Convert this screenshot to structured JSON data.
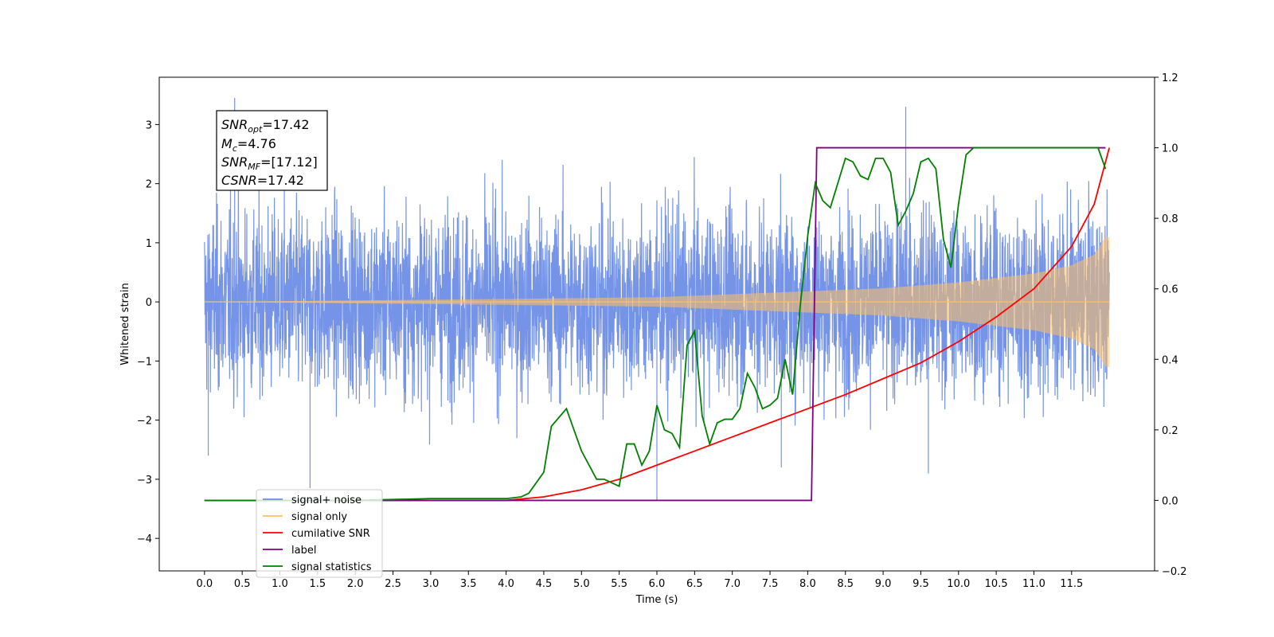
{
  "chart_data": {
    "type": "line",
    "xlabel": "Time (s)",
    "ylabel": "Whitened strain",
    "xlim": [
      -0.6,
      12.6
    ],
    "ylim": [
      -4.55,
      3.8
    ],
    "ylim_right": [
      -0.2,
      1.2
    ],
    "x_ticks": [
      0.0,
      0.5,
      1.0,
      1.5,
      2.0,
      2.5,
      3.0,
      3.5,
      4.0,
      4.5,
      5.0,
      5.5,
      6.0,
      6.5,
      7.0,
      7.5,
      8.0,
      8.5,
      9.0,
      9.5,
      10.0,
      10.5,
      11.0,
      11.5
    ],
    "x_tick_labels": [
      "0.0",
      "0.5",
      "1.0",
      "1.5",
      "2.0",
      "2.5",
      "3.0",
      "3.5",
      "4.0",
      "4.5",
      "5.0",
      "5.5",
      "6.0",
      "6.5",
      "7.0",
      "7.5",
      "8.0",
      "8.5",
      "9.0",
      "9.5",
      "10.0",
      "10.5",
      "11.0",
      "11.5"
    ],
    "y_ticks": [
      3,
      2,
      1,
      0,
      -1,
      -2,
      -3,
      -4
    ],
    "y_tick_labels": [
      "3",
      "2",
      "1",
      "0",
      "−1",
      "−2",
      "−3",
      "−4"
    ],
    "y_ticks_right": [
      1.2,
      1.0,
      0.8,
      0.6,
      0.4,
      0.2,
      0.0,
      -0.2
    ],
    "y_tick_labels_right": [
      "1.2",
      "1.0",
      "0.8",
      "0.6",
      "0.4",
      "0.2",
      "0.0",
      "−0.2"
    ],
    "grid": false,
    "legend_position": "lower-left",
    "annotation": {
      "snr_opt_base": "SNR",
      "snr_opt_sub": "opt",
      "snr_opt_value": "=17.42",
      "mc_base": "M",
      "mc_sub": "c",
      "mc_value": "=4.76",
      "snr_mf_base": "SNR",
      "snr_mf_sub": "MF",
      "snr_mf_value": "=[17.12]",
      "csnr_base": "CSNR",
      "csnr_value": "=17.42"
    },
    "noise": {
      "name": "signal+ noise",
      "color": "#6f8ee6",
      "x_range": [
        0.0,
        12.0
      ],
      "typical_range": [
        -1.6,
        1.6
      ],
      "max": 3.45,
      "min": -3.35,
      "spikes": [
        [
          0.4,
          3.45
        ],
        [
          9.3,
          3.3
        ],
        [
          6.0,
          -3.35
        ],
        [
          1.4,
          -3.15
        ],
        [
          0.05,
          -2.6
        ],
        [
          7.65,
          -2.8
        ],
        [
          9.6,
          -2.9
        ]
      ]
    },
    "signal": {
      "name": "signal only",
      "color": "#ffbf60",
      "amplitude": [
        [
          0.0,
          0.0
        ],
        [
          4.0,
          0.05
        ],
        [
          6.0,
          0.08
        ],
        [
          8.0,
          0.18
        ],
        [
          9.0,
          0.23
        ],
        [
          10.0,
          0.33
        ],
        [
          11.0,
          0.48
        ],
        [
          11.5,
          0.62
        ],
        [
          11.8,
          0.8
        ],
        [
          11.95,
          1.1
        ],
        [
          12.0,
          1.1
        ]
      ]
    },
    "series": [
      {
        "name": "cumilative SNR",
        "axis": "right",
        "color": "#ff0000",
        "x": [
          0.0,
          4.0,
          4.5,
          5.0,
          5.5,
          6.0,
          6.5,
          7.0,
          7.5,
          8.0,
          8.5,
          9.0,
          9.5,
          10.0,
          10.5,
          11.0,
          11.5,
          11.8,
          11.95,
          12.0
        ],
        "y": [
          0.0,
          0.0,
          0.01,
          0.03,
          0.06,
          0.1,
          0.14,
          0.18,
          0.22,
          0.26,
          0.3,
          0.345,
          0.39,
          0.45,
          0.52,
          0.6,
          0.72,
          0.84,
          0.96,
          1.0
        ]
      },
      {
        "name": "label",
        "axis": "right",
        "color": "#800080",
        "x": [
          0.0,
          8.05,
          8.12,
          11.95
        ],
        "y": [
          0.0,
          0.0,
          1.0,
          1.0
        ]
      },
      {
        "name": "signal statistics",
        "axis": "right",
        "color": "#008000",
        "x": [
          0.0,
          1.0,
          2.0,
          3.0,
          3.5,
          4.0,
          4.2,
          4.3,
          4.5,
          4.6,
          4.8,
          5.0,
          5.2,
          5.3,
          5.5,
          5.6,
          5.7,
          5.8,
          5.9,
          6.0,
          6.1,
          6.2,
          6.3,
          6.4,
          6.5,
          6.6,
          6.7,
          6.8,
          6.9,
          7.0,
          7.1,
          7.2,
          7.3,
          7.4,
          7.5,
          7.6,
          7.7,
          7.8,
          7.9,
          8.0,
          8.1,
          8.2,
          8.3,
          8.4,
          8.5,
          8.6,
          8.7,
          8.8,
          8.9,
          9.0,
          9.1,
          9.2,
          9.3,
          9.4,
          9.5,
          9.6,
          9.7,
          9.8,
          9.9,
          10.0,
          10.1,
          10.2,
          10.5,
          11.0,
          11.5,
          11.85,
          11.95
        ],
        "y": [
          0.0,
          0.0,
          0.0,
          0.005,
          0.005,
          0.005,
          0.01,
          0.02,
          0.08,
          0.21,
          0.26,
          0.14,
          0.06,
          0.06,
          0.04,
          0.16,
          0.16,
          0.1,
          0.14,
          0.27,
          0.2,
          0.19,
          0.15,
          0.44,
          0.48,
          0.24,
          0.16,
          0.22,
          0.23,
          0.23,
          0.26,
          0.36,
          0.32,
          0.26,
          0.27,
          0.29,
          0.4,
          0.3,
          0.55,
          0.75,
          0.9,
          0.85,
          0.83,
          0.9,
          0.97,
          0.96,
          0.92,
          0.91,
          0.97,
          0.97,
          0.93,
          0.78,
          0.82,
          0.87,
          0.96,
          0.97,
          0.94,
          0.74,
          0.66,
          0.84,
          0.98,
          1.0,
          1.0,
          1.0,
          1.0,
          1.0,
          0.94
        ]
      }
    ],
    "legend": [
      {
        "name": "signal+ noise",
        "color": "#6f8ee6"
      },
      {
        "name": "signal only",
        "color": "#ffbf60"
      },
      {
        "name": "cumilative SNR",
        "color": "#ff0000"
      },
      {
        "name": "label",
        "color": "#800080"
      },
      {
        "name": "signal statistics",
        "color": "#008000"
      }
    ]
  }
}
